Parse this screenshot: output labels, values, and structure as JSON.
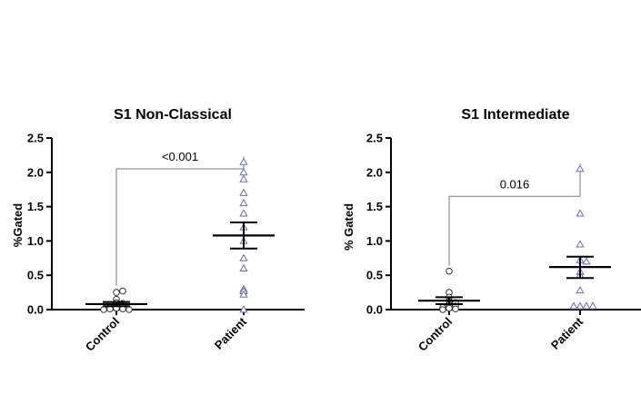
{
  "chart_data": [
    {
      "type": "scatter",
      "title": "S1 Non-Classical",
      "ylabel": "%Gated",
      "xlabel": "",
      "ylim": [
        0,
        2.5
      ],
      "yticks": [
        "0.0",
        "0.5",
        "1.0",
        "1.5",
        "2.0",
        "2.5"
      ],
      "ytick_values": [
        0,
        0.5,
        1.0,
        1.5,
        2.0,
        2.5
      ],
      "categories": [
        "Control",
        "Patient"
      ],
      "grid": false,
      "groups": [
        {
          "category": "Control",
          "marker": "circle",
          "mean": 0.08,
          "sem_low": 0.05,
          "sem_high": 0.11,
          "points": [
            0.25,
            0.27,
            0.15,
            0.1,
            0.09,
            0.07,
            0.05,
            0.03,
            0.02,
            0.01,
            0.01,
            0.0,
            0.0
          ]
        },
        {
          "category": "Patient",
          "marker": "triangle",
          "mean": 1.08,
          "sem_low": 0.89,
          "sem_high": 1.27,
          "points": [
            2.15,
            2.0,
            1.9,
            1.7,
            1.55,
            1.4,
            1.2,
            1.0,
            0.75,
            0.6,
            0.3,
            0.27,
            0.22,
            0.0
          ]
        }
      ],
      "annotation": {
        "text": "<0.001",
        "y": 2.05
      }
    },
    {
      "type": "scatter",
      "title": "S1 Intermediate",
      "ylabel": "% Gated",
      "xlabel": "",
      "ylim": [
        0,
        2.5
      ],
      "yticks": [
        "0.0",
        "0.5",
        "1.0",
        "1.5",
        "2.0",
        "2.5"
      ],
      "ytick_values": [
        0,
        0.5,
        1.0,
        1.5,
        2.0,
        2.5
      ],
      "categories": [
        "Control",
        "Patient"
      ],
      "grid": false,
      "groups": [
        {
          "category": "Control",
          "marker": "circle",
          "mean": 0.13,
          "sem_low": 0.08,
          "sem_high": 0.18,
          "points": [
            0.56,
            0.25,
            0.18,
            0.12,
            0.1,
            0.07,
            0.05,
            0.03,
            0.02,
            0.01,
            0.0
          ]
        },
        {
          "category": "Patient",
          "marker": "triangle",
          "mean": 0.62,
          "sem_low": 0.46,
          "sem_high": 0.77,
          "points": [
            2.05,
            1.4,
            0.95,
            0.72,
            0.7,
            0.55,
            0.5,
            0.28,
            0.05,
            0.05,
            0.05,
            0.05
          ]
        }
      ],
      "annotation": {
        "text": "0.016",
        "y": 1.65
      }
    }
  ],
  "colors": {
    "axis": "#000000",
    "control_marker": "#333333",
    "patient_marker": "#6b6bb0",
    "bracket": "#7a7a7a"
  }
}
